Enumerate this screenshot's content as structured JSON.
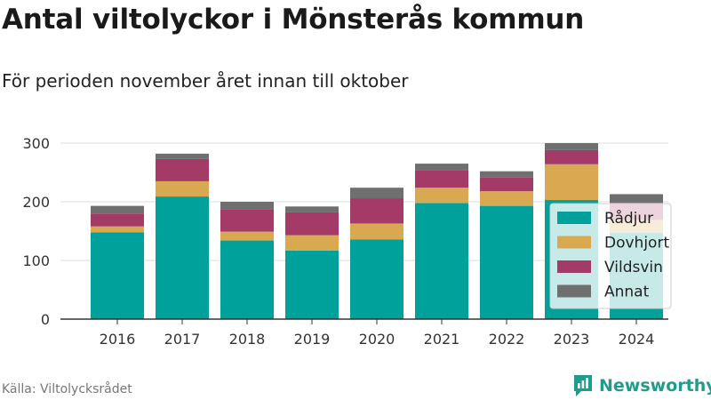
{
  "header": {
    "title": "Antal viltolyckor i Mönsterås kommun",
    "subtitle": "För perioden november året innan till oktober"
  },
  "footer": {
    "source": "Källa: Viltolycksrådet",
    "brand": "Newsworthy",
    "brand_icon": "newsworthy-logo-icon"
  },
  "chart_data": {
    "type": "bar",
    "stacked": true,
    "title": "",
    "xlabel": "",
    "ylabel": "",
    "categories": [
      "2016",
      "2017",
      "2018",
      "2019",
      "2020",
      "2021",
      "2022",
      "2023",
      "2024"
    ],
    "ylim": [
      0,
      300
    ],
    "yticks": [
      0,
      100,
      200,
      300
    ],
    "grid": true,
    "legend_position": "right",
    "series": [
      {
        "name": "Rådjur",
        "color": "#00a19a",
        "values": [
          148,
          209,
          134,
          117,
          136,
          198,
          193,
          203,
          147
        ]
      },
      {
        "name": "Dovhjort",
        "color": "#d9a952",
        "values": [
          10,
          26,
          15,
          26,
          27,
          26,
          25,
          61,
          22
        ]
      },
      {
        "name": "Vildsvin",
        "color": "#a33b66",
        "values": [
          22,
          38,
          38,
          39,
          43,
          30,
          24,
          24,
          29
        ]
      },
      {
        "name": "Annat",
        "color": "#6f6f70",
        "values": [
          13,
          9,
          13,
          10,
          18,
          11,
          10,
          12,
          15
        ]
      }
    ]
  }
}
